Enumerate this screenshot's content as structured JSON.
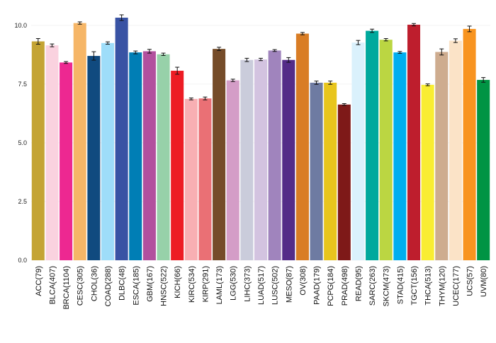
{
  "chart_data": {
    "type": "bar",
    "title": "",
    "xlabel": "",
    "ylabel": "",
    "ylim": [
      0,
      10.6
    ],
    "yticks": [
      0,
      2.5,
      5,
      7.5,
      10
    ],
    "ytick_labels": [
      "0.0",
      "2.5",
      "5.0",
      "7.5",
      "10.0"
    ],
    "grid": "horizontal",
    "legend": "none",
    "bars": [
      {
        "label": "ACC(79)",
        "value": 9.32,
        "err": 0.12,
        "color": "#C4A434"
      },
      {
        "label": "BLCA(407)",
        "value": 9.15,
        "err": 0.06,
        "color": "#FAD2DF"
      },
      {
        "label": "BRCA(1104)",
        "value": 8.42,
        "err": 0.04,
        "color": "#ED2891"
      },
      {
        "label": "CESC(305)",
        "value": 10.1,
        "err": 0.05,
        "color": "#F6B667"
      },
      {
        "label": "CHOL(36)",
        "value": 8.7,
        "err": 0.18,
        "color": "#104A7F"
      },
      {
        "label": "COAD(288)",
        "value": 9.25,
        "err": 0.05,
        "color": "#9EDDF9"
      },
      {
        "label": "DLBC(48)",
        "value": 10.33,
        "err": 0.12,
        "color": "#3953A4"
      },
      {
        "label": "ESCA(185)",
        "value": 8.85,
        "err": 0.06,
        "color": "#007EB5"
      },
      {
        "label": "GBM(167)",
        "value": 8.9,
        "err": 0.08,
        "color": "#B2509E"
      },
      {
        "label": "HNSC(522)",
        "value": 8.77,
        "err": 0.05,
        "color": "#97D1A9"
      },
      {
        "label": "KICH(66)",
        "value": 8.07,
        "err": 0.15,
        "color": "#ED1C24"
      },
      {
        "label": "KIRC(534)",
        "value": 6.87,
        "err": 0.04,
        "color": "#F8AFB3"
      },
      {
        "label": "KIRP(291)",
        "value": 6.89,
        "err": 0.06,
        "color": "#EA7075"
      },
      {
        "label": "LAML(173)",
        "value": 9.0,
        "err": 0.07,
        "color": "#754C29"
      },
      {
        "label": "LGG(530)",
        "value": 7.66,
        "err": 0.05,
        "color": "#D49DC7"
      },
      {
        "label": "LIHC(373)",
        "value": 8.53,
        "err": 0.07,
        "color": "#CACCDB"
      },
      {
        "label": "LUAD(517)",
        "value": 8.55,
        "err": 0.05,
        "color": "#D3C3E0"
      },
      {
        "label": "LUSC(502)",
        "value": 8.93,
        "err": 0.04,
        "color": "#A084BD"
      },
      {
        "label": "MESO(87)",
        "value": 8.53,
        "err": 0.1,
        "color": "#542C88"
      },
      {
        "label": "OV(308)",
        "value": 9.65,
        "err": 0.05,
        "color": "#D97D25"
      },
      {
        "label": "PAAD(179)",
        "value": 7.56,
        "err": 0.07,
        "color": "#6E7BA2"
      },
      {
        "label": "PCPG(184)",
        "value": 7.56,
        "err": 0.07,
        "color": "#E8C51D"
      },
      {
        "label": "PRAD(498)",
        "value": 6.63,
        "err": 0.04,
        "color": "#7E1918"
      },
      {
        "label": "READ(95)",
        "value": 9.27,
        "err": 0.09,
        "color": "#DAF1FC"
      },
      {
        "label": "SARC(263)",
        "value": 9.77,
        "err": 0.07,
        "color": "#00A99D"
      },
      {
        "label": "SKCM(473)",
        "value": 9.39,
        "err": 0.05,
        "color": "#BBD642"
      },
      {
        "label": "STAD(415)",
        "value": 8.85,
        "err": 0.04,
        "color": "#00AEEF"
      },
      {
        "label": "TGCT(156)",
        "value": 10.03,
        "err": 0.05,
        "color": "#BE1E2D"
      },
      {
        "label": "THCA(513)",
        "value": 7.47,
        "err": 0.04,
        "color": "#F9ED32"
      },
      {
        "label": "THYM(120)",
        "value": 8.87,
        "err": 0.13,
        "color": "#CEAC8F"
      },
      {
        "label": "UCEC(177)",
        "value": 9.35,
        "err": 0.08,
        "color": "#FBE3C7"
      },
      {
        "label": "UCS(57)",
        "value": 9.85,
        "err": 0.12,
        "color": "#F89420"
      },
      {
        "label": "UVM(80)",
        "value": 7.68,
        "err": 0.1,
        "color": "#009444"
      }
    ]
  }
}
